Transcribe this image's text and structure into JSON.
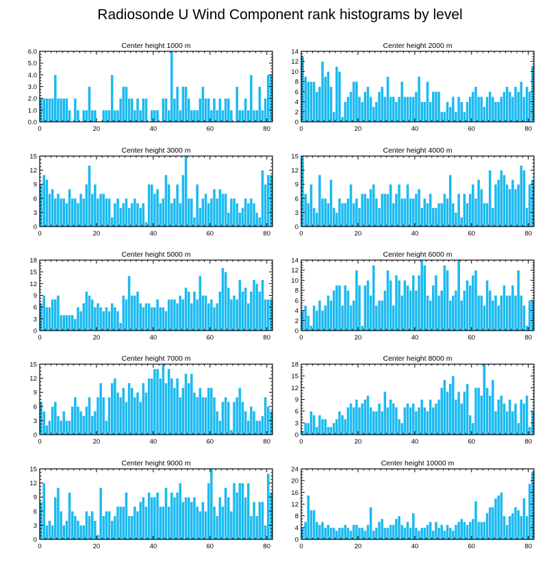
{
  "figure": {
    "title": "Radiosonde U Wind Component rank histograms by level",
    "bar_color": "#1bbaf0",
    "bar_edge_color": "#ffffff",
    "axis_color": "#000000"
  },
  "chart_data": [
    {
      "type": "bar",
      "title": "Center height 1000 m",
      "xlim": [
        0,
        82
      ],
      "ylim": [
        0,
        6
      ],
      "xticks": [
        0,
        20,
        40,
        60,
        80
      ],
      "yticks": [
        0,
        1,
        2,
        3,
        4,
        5,
        6
      ],
      "ytick_labels": [
        "0.0",
        "1.0",
        "2.0",
        "3.0",
        "4.0",
        "5.0",
        "6.0"
      ],
      "values": [
        2,
        2,
        2,
        2,
        2,
        4,
        2,
        2,
        2,
        2,
        1,
        0,
        2,
        1,
        0,
        1,
        1,
        3,
        1,
        1,
        0,
        0,
        1,
        1,
        1,
        4,
        1,
        1,
        2,
        3,
        3,
        2,
        2,
        1,
        2,
        1,
        2,
        2,
        0,
        1,
        1,
        1,
        0,
        2,
        2,
        1,
        6,
        2,
        3,
        1,
        3,
        3,
        2,
        1,
        1,
        1,
        2,
        3,
        2,
        2,
        1,
        2,
        1,
        2,
        1,
        2,
        2,
        1,
        0,
        3,
        1,
        1,
        2,
        1,
        4,
        1,
        1,
        3,
        1,
        2,
        4,
        4
      ]
    },
    {
      "type": "bar",
      "title": "Center height 2000 m",
      "xlim": [
        0,
        82
      ],
      "ylim": [
        0,
        14
      ],
      "xticks": [
        0,
        20,
        40,
        60,
        80
      ],
      "yticks": [
        0,
        2,
        4,
        6,
        8,
        10,
        12,
        14
      ],
      "ytick_labels": [
        "0",
        "2",
        "4",
        "6",
        "8",
        "10",
        "12",
        "14"
      ],
      "values": [
        13,
        9,
        8,
        8,
        8,
        6,
        7,
        12,
        9,
        10,
        7,
        2,
        11,
        10,
        1,
        4,
        5,
        6,
        8,
        8,
        5,
        4,
        6,
        7,
        5,
        3,
        4,
        6,
        7,
        5,
        9,
        5,
        5,
        4,
        5,
        8,
        5,
        5,
        5,
        5,
        6,
        9,
        4,
        4,
        8,
        4,
        6,
        6,
        6,
        2,
        2,
        4,
        3,
        5,
        2,
        5,
        4,
        2,
        4,
        5,
        6,
        7,
        5,
        5,
        3,
        5,
        6,
        5,
        4,
        4,
        5,
        6,
        7,
        6,
        5,
        7,
        6,
        8,
        5,
        7,
        6,
        11
      ]
    },
    {
      "type": "bar",
      "title": "Center height 3000 m",
      "xlim": [
        0,
        82
      ],
      "ylim": [
        0,
        15
      ],
      "xticks": [
        0,
        20,
        40,
        60,
        80
      ],
      "yticks": [
        0,
        3,
        6,
        9,
        12,
        15
      ],
      "ytick_labels": [
        "0",
        "3",
        "6",
        "9",
        "12",
        "15"
      ],
      "values": [
        9,
        11,
        10,
        7,
        8,
        6,
        7,
        6,
        6,
        5,
        8,
        6,
        6,
        5,
        7,
        6,
        9,
        13,
        7,
        9,
        6,
        7,
        7,
        6,
        6,
        2,
        5,
        6,
        4,
        5,
        6,
        4,
        5,
        6,
        5,
        4,
        5,
        1,
        9,
        9,
        7,
        8,
        5,
        6,
        11,
        9,
        5,
        6,
        9,
        5,
        11,
        15,
        6,
        6,
        2,
        9,
        4,
        6,
        7,
        5,
        6,
        8,
        6,
        8,
        7,
        7,
        3,
        6,
        6,
        5,
        3,
        4,
        6,
        5,
        6,
        5,
        3,
        2,
        12,
        9,
        11,
        11
      ]
    },
    {
      "type": "bar",
      "title": "Center height 4000 m",
      "xlim": [
        0,
        82
      ],
      "ylim": [
        0,
        15
      ],
      "xticks": [
        0,
        20,
        40,
        60,
        80
      ],
      "yticks": [
        0,
        3,
        6,
        9,
        12,
        15
      ],
      "ytick_labels": [
        "0",
        "3",
        "6",
        "9",
        "12",
        "15"
      ],
      "values": [
        15,
        7,
        5,
        9,
        4,
        3,
        11,
        6,
        6,
        5,
        10,
        4,
        3,
        6,
        5,
        5,
        6,
        9,
        5,
        6,
        4,
        7,
        7,
        6,
        8,
        9,
        6,
        4,
        7,
        7,
        7,
        9,
        5,
        7,
        9,
        6,
        6,
        9,
        6,
        6,
        7,
        8,
        4,
        6,
        5,
        7,
        4,
        4,
        5,
        5,
        7,
        6,
        11,
        5,
        3,
        7,
        2,
        7,
        5,
        7,
        9,
        6,
        10,
        8,
        5,
        5,
        12,
        4,
        9,
        10,
        12,
        11,
        9,
        8,
        10,
        8,
        9,
        13,
        12,
        4,
        9,
        10
      ]
    },
    {
      "type": "bar",
      "title": "Center height 5000 m",
      "xlim": [
        0,
        82
      ],
      "ylim": [
        0,
        18
      ],
      "xticks": [
        0,
        20,
        40,
        60,
        80
      ],
      "yticks": [
        0,
        3,
        6,
        9,
        12,
        15,
        18
      ],
      "ytick_labels": [
        "0",
        "3",
        "6",
        "9",
        "12",
        "15",
        "18"
      ],
      "values": [
        7,
        9,
        6,
        6,
        8,
        8,
        9,
        4,
        4,
        4,
        4,
        4,
        3,
        6,
        5,
        7,
        10,
        9,
        8,
        6,
        7,
        6,
        5,
        6,
        5,
        7,
        6,
        5,
        2,
        9,
        8,
        14,
        9,
        9,
        10,
        7,
        6,
        7,
        7,
        6,
        6,
        8,
        6,
        6,
        5,
        8,
        8,
        8,
        7,
        9,
        8,
        11,
        10,
        7,
        10,
        8,
        14,
        9,
        9,
        7,
        8,
        6,
        7,
        10,
        16,
        15,
        11,
        8,
        9,
        8,
        13,
        10,
        11,
        7,
        10,
        13,
        12,
        10,
        13,
        8,
        8,
        8
      ]
    },
    {
      "type": "bar",
      "title": "Center height 6000 m",
      "xlim": [
        0,
        82
      ],
      "ylim": [
        0,
        14
      ],
      "xticks": [
        0,
        20,
        40,
        60,
        80
      ],
      "yticks": [
        0,
        2,
        4,
        6,
        8,
        10,
        12,
        14
      ],
      "ytick_labels": [
        "0",
        "2",
        "4",
        "6",
        "8",
        "10",
        "12",
        "14"
      ],
      "values": [
        4,
        5,
        3,
        1,
        5,
        4,
        6,
        4,
        5,
        7,
        6,
        8,
        9,
        9,
        5,
        9,
        8,
        5,
        6,
        12,
        9,
        1,
        9,
        10,
        7,
        13,
        5,
        6,
        6,
        8,
        12,
        10,
        5,
        11,
        10,
        7,
        10,
        9,
        8,
        11,
        8,
        11,
        14,
        13,
        7,
        6,
        9,
        11,
        7,
        8,
        13,
        12,
        6,
        7,
        8,
        14,
        6,
        8,
        10,
        9,
        11,
        12,
        7,
        7,
        5,
        10,
        8,
        6,
        7,
        5,
        7,
        9,
        7,
        7,
        9,
        7,
        12,
        7,
        5,
        1,
        6,
        6
      ]
    },
    {
      "type": "bar",
      "title": "Center height 7000 m",
      "xlim": [
        0,
        82
      ],
      "ylim": [
        0,
        15
      ],
      "xticks": [
        0,
        20,
        40,
        60,
        80
      ],
      "yticks": [
        0,
        3,
        6,
        9,
        12,
        15
      ],
      "ytick_labels": [
        "0",
        "3",
        "6",
        "9",
        "12",
        "15"
      ],
      "values": [
        7,
        5,
        2,
        3,
        6,
        7,
        4,
        3,
        5,
        3,
        3,
        6,
        8,
        6,
        5,
        4,
        6,
        8,
        4,
        5,
        8,
        11,
        8,
        3,
        8,
        11,
        12,
        9,
        8,
        10,
        7,
        11,
        10,
        8,
        9,
        7,
        11,
        9,
        12,
        12,
        14,
        14,
        12,
        15,
        11,
        14,
        12,
        10,
        12,
        8,
        10,
        13,
        11,
        13,
        9,
        8,
        10,
        8,
        8,
        10,
        10,
        8,
        5,
        3,
        7,
        8,
        7,
        1,
        7,
        8,
        10,
        7,
        5,
        3,
        6,
        5,
        3,
        3,
        4,
        8,
        6,
        5
      ]
    },
    {
      "type": "bar",
      "title": "Center height 8000 m",
      "xlim": [
        0,
        82
      ],
      "ylim": [
        0,
        18
      ],
      "xticks": [
        0,
        20,
        40,
        60,
        80
      ],
      "yticks": [
        0,
        3,
        6,
        9,
        12,
        15,
        18
      ],
      "ytick_labels": [
        "0",
        "3",
        "6",
        "9",
        "12",
        "15",
        "18"
      ],
      "values": [
        1,
        3,
        3,
        6,
        5,
        2,
        5,
        4,
        4,
        2,
        2,
        3,
        4,
        6,
        5,
        4,
        7,
        8,
        7,
        9,
        7,
        8,
        9,
        10,
        7,
        6,
        6,
        8,
        6,
        11,
        7,
        9,
        8,
        7,
        4,
        3,
        7,
        8,
        7,
        8,
        6,
        7,
        9,
        7,
        6,
        9,
        7,
        8,
        9,
        12,
        14,
        11,
        13,
        15,
        9,
        11,
        8,
        11,
        13,
        5,
        3,
        12,
        12,
        10,
        18,
        12,
        10,
        14,
        6,
        9,
        10,
        8,
        6,
        9,
        6,
        8,
        3,
        9,
        8,
        10,
        2,
        6
      ]
    },
    {
      "type": "bar",
      "title": "Center height 9000 m",
      "xlim": [
        0,
        82
      ],
      "ylim": [
        0,
        15
      ],
      "xticks": [
        0,
        20,
        40,
        60,
        80
      ],
      "yticks": [
        0,
        3,
        6,
        9,
        12,
        15
      ],
      "ytick_labels": [
        "0",
        "3",
        "6",
        "9",
        "12",
        "15"
      ],
      "values": [
        8,
        12,
        3,
        4,
        3,
        9,
        11,
        6,
        3,
        4,
        10,
        6,
        5,
        4,
        3,
        3,
        6,
        5,
        6,
        4,
        1,
        11,
        5,
        6,
        6,
        4,
        5,
        7,
        7,
        7,
        10,
        5,
        5,
        7,
        6,
        8,
        9,
        7,
        10,
        9,
        9,
        10,
        7,
        7,
        11,
        7,
        10,
        9,
        10,
        12,
        8,
        9,
        9,
        8,
        9,
        7,
        6,
        8,
        6,
        12,
        15,
        7,
        5,
        9,
        7,
        11,
        9,
        6,
        12,
        10,
        12,
        12,
        9,
        12,
        5,
        8,
        5,
        8,
        8,
        3,
        14,
        10
      ]
    },
    {
      "type": "bar",
      "title": "Center height 10000 m",
      "xlim": [
        0,
        82
      ],
      "ylim": [
        0,
        24
      ],
      "xticks": [
        0,
        20,
        40,
        60,
        80
      ],
      "yticks": [
        0,
        4,
        8,
        12,
        16,
        20,
        24
      ],
      "ytick_labels": [
        "0",
        "4",
        "8",
        "12",
        "16",
        "20",
        "24"
      ],
      "values": [
        4,
        6,
        15,
        10,
        10,
        6,
        5,
        6,
        4,
        5,
        4,
        4,
        3,
        4,
        4,
        5,
        4,
        3,
        5,
        5,
        4,
        4,
        3,
        5,
        11,
        3,
        4,
        6,
        7,
        4,
        4,
        5,
        5,
        7,
        8,
        5,
        4,
        6,
        4,
        9,
        4,
        3,
        4,
        4,
        5,
        6,
        3,
        6,
        4,
        5,
        3,
        5,
        4,
        3,
        5,
        6,
        7,
        6,
        5,
        6,
        7,
        13,
        6,
        6,
        6,
        9,
        11,
        11,
        14,
        15,
        16,
        8,
        5,
        8,
        9,
        11,
        10,
        8,
        14,
        8,
        19,
        23
      ]
    }
  ]
}
